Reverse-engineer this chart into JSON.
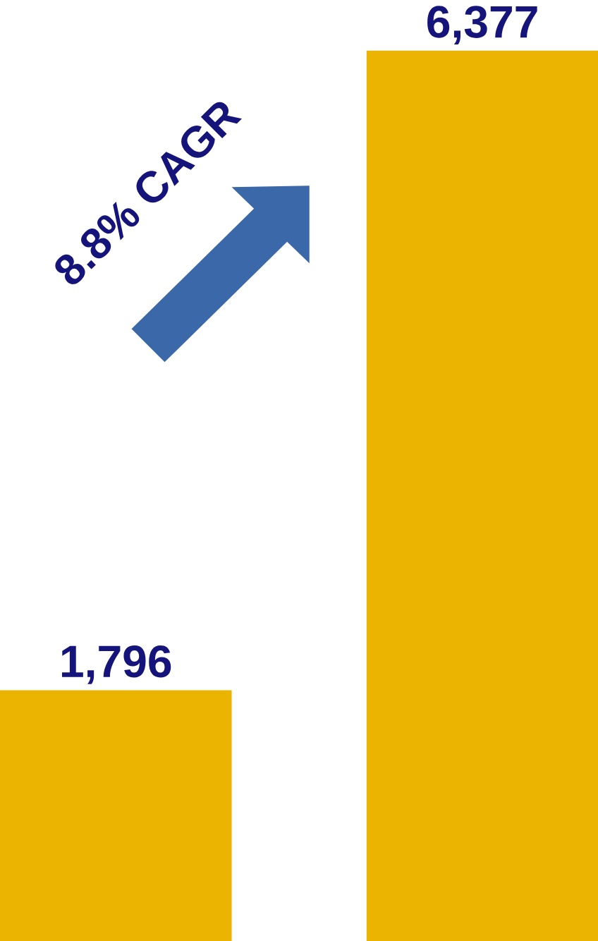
{
  "chart_data": {
    "type": "bar",
    "categories": [
      null,
      null
    ],
    "values": [
      1796,
      6377
    ],
    "value_labels": [
      "1,796",
      "6,377"
    ],
    "color": "#ebb400",
    "annotations": [
      "8.8% CAGR"
    ]
  }
}
